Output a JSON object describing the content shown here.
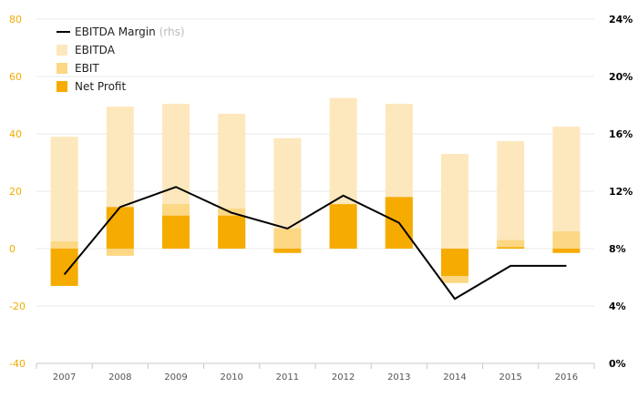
{
  "chart_data": {
    "type": "bar",
    "categories": [
      "2007",
      "2008",
      "2009",
      "2010",
      "2011",
      "2012",
      "2013",
      "2014",
      "2015",
      "2016"
    ],
    "series": [
      {
        "name": "EBITDA",
        "kind": "bar",
        "axis": "left",
        "color": "#fde8bd",
        "values": [
          39,
          49.5,
          50.5,
          47,
          38.5,
          52.5,
          50.5,
          33,
          37.5,
          42.5
        ]
      },
      {
        "name": "EBIT",
        "kind": "bar",
        "axis": "left",
        "color": "#fcd784",
        "values": [
          2.5,
          -2.5,
          15.5,
          14,
          7,
          14.5,
          17.5,
          -12,
          3,
          6
        ]
      },
      {
        "name": "Net Profit",
        "kind": "bar",
        "axis": "left",
        "color": "#f6ab00",
        "values": [
          -13,
          14.5,
          11.5,
          11.5,
          -1.5,
          15.5,
          18,
          -9.5,
          0.5,
          -1.5
        ]
      },
      {
        "name": "EBITDA Margin",
        "kind": "line",
        "axis": "right",
        "color": "#000000",
        "values": [
          6.2,
          10.9,
          12.3,
          10.5,
          9.4,
          11.7,
          9.8,
          4.5,
          6.8,
          6.8
        ]
      }
    ],
    "legend": {
      "items": [
        "EBITDA Margin",
        "EBITDA",
        "EBIT",
        "Net Profit"
      ],
      "line_note": "(rhs)",
      "position": "top-left"
    },
    "y_left": {
      "ylim": [
        -40,
        80
      ],
      "ticks": [
        "80",
        "60",
        "40",
        "20",
        "0",
        "-20",
        "-40"
      ],
      "tick_values": [
        80,
        60,
        40,
        20,
        0,
        -20,
        -40
      ],
      "color": "#f2ab00"
    },
    "y_right": {
      "ylim": [
        0,
        24
      ],
      "ticks": [
        "24%",
        "20%",
        "16%",
        "12%",
        "8%",
        "4%",
        "0%"
      ],
      "tick_values": [
        24,
        20,
        16,
        12,
        8,
        4,
        0
      ],
      "color": "#000000"
    },
    "grid": true,
    "title": "",
    "xlabel": "",
    "ylabel": ""
  }
}
